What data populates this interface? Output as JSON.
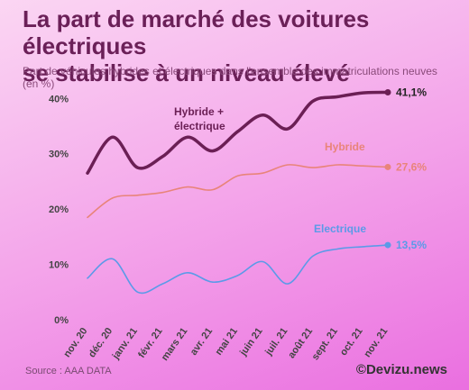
{
  "header": {
    "title_line1": "La part de marché des voitures électriques",
    "title_line2": "se stabilise à un niveau élevé",
    "subtitle": "Part de véhicules hybrides et électriques dans l'ensemble des immatriculations neuves (en %)"
  },
  "footer": {
    "source": "Source : AAA DATA",
    "brand": "©Devizu.news"
  },
  "colors": {
    "hybride_electrique": "#6b1f55",
    "hybride": "#e8847a",
    "electrique": "#5b9ae8"
  },
  "chart_data": {
    "type": "line",
    "categories": [
      "nov. 20",
      "déc. 20",
      "janv. 21",
      "févr. 21",
      "mars 21",
      "avr. 21",
      "mai 21",
      "juin 21",
      "juil. 21",
      "août 21",
      "sept. 21",
      "oct. 21",
      "nov. 21"
    ],
    "ylim": [
      0,
      42
    ],
    "yticks": [
      {
        "value": 0,
        "label": "0%"
      },
      {
        "value": 10,
        "label": "10%"
      },
      {
        "value": 20,
        "label": "20%"
      },
      {
        "value": 30,
        "label": "30%"
      },
      {
        "value": 40,
        "label": "40%"
      }
    ],
    "series": [
      {
        "key": "hybride_electrique",
        "name": "Hybride + électrique",
        "name_line1": "Hybride +",
        "name_line2": "électrique",
        "values": [
          26.5,
          33.0,
          27.5,
          29.5,
          33.0,
          30.5,
          34.0,
          37.0,
          34.5,
          39.5,
          40.3,
          41.0,
          41.1
        ],
        "end_label": "41,1%"
      },
      {
        "key": "hybride",
        "name": "Hybride",
        "values": [
          18.5,
          22.0,
          22.5,
          23.0,
          24.0,
          23.5,
          26.0,
          26.5,
          28.0,
          27.5,
          28.0,
          27.8,
          27.6
        ],
        "end_label": "27,6%"
      },
      {
        "key": "electrique",
        "name": "Electrique",
        "values": [
          7.5,
          11.0,
          5.0,
          6.5,
          8.5,
          6.8,
          8.0,
          10.5,
          6.5,
          11.5,
          12.8,
          13.2,
          13.5
        ],
        "end_label": "13,5%"
      }
    ]
  }
}
